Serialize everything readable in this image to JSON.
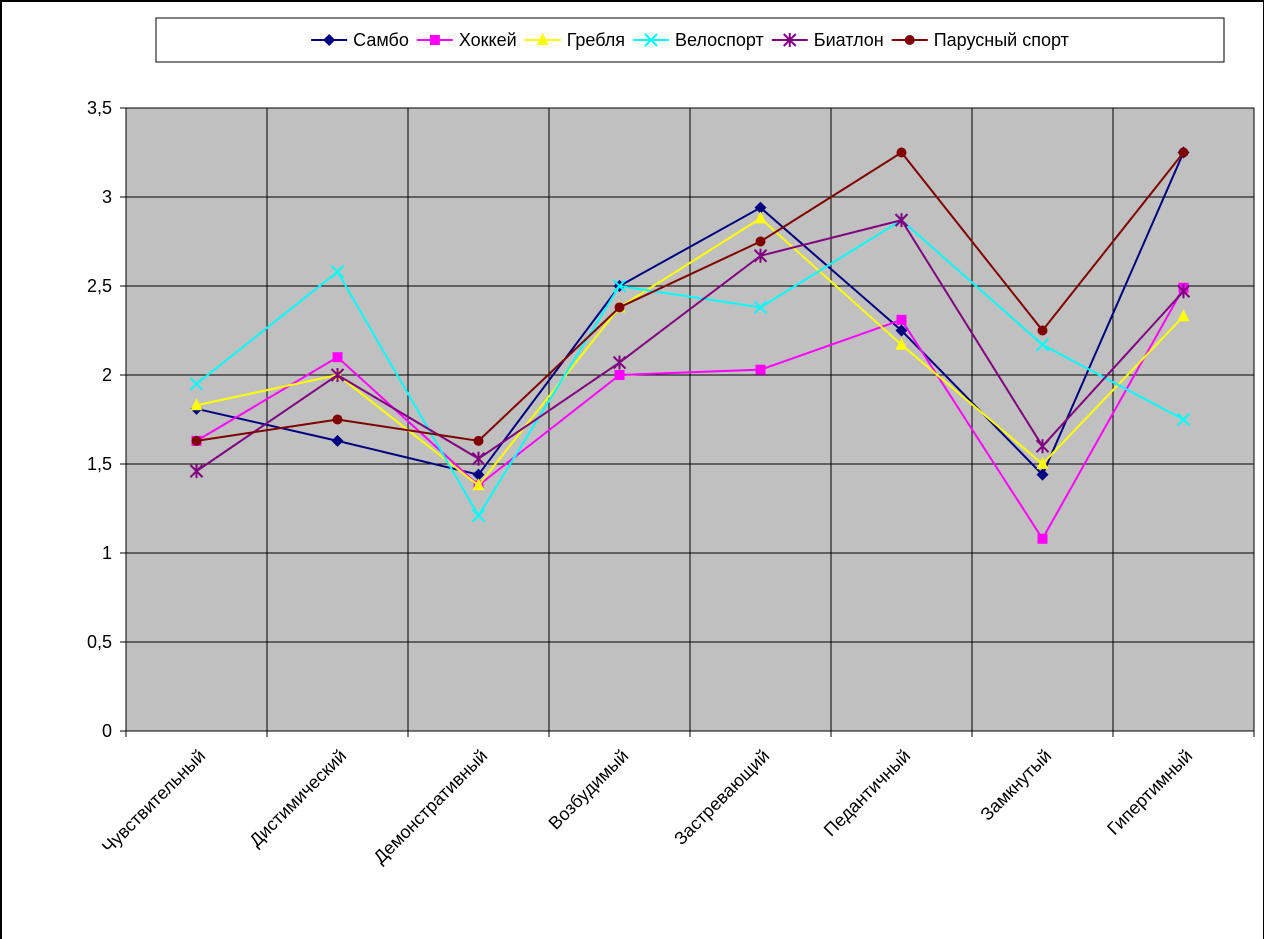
{
  "chart_data": {
    "type": "line",
    "title": "",
    "xlabel": "",
    "ylabel": "",
    "categories": [
      "Чувствительный",
      "Дистимический",
      "Демонстративный",
      "Возбудимый",
      "Застревающий",
      "Педантичный",
      "Замкнутый",
      "Гипертимный"
    ],
    "ylim": [
      0,
      3.5
    ],
    "yticks": [
      {
        "value": 0,
        "label": "0"
      },
      {
        "value": 0.5,
        "label": "0,5"
      },
      {
        "value": 1,
        "label": "1"
      },
      {
        "value": 1.5,
        "label": "1,5"
      },
      {
        "value": 2,
        "label": "2"
      },
      {
        "value": 2.5,
        "label": "2,5"
      },
      {
        "value": 3,
        "label": "3"
      },
      {
        "value": 3.5,
        "label": "3,5"
      }
    ],
    "grid": true,
    "plot_background": "#c0c0c0",
    "legend_position": "top",
    "series": [
      {
        "name": "Самбо",
        "color": "#000080",
        "marker": "diamond",
        "values": [
          1.81,
          1.63,
          1.44,
          2.5,
          2.94,
          2.25,
          1.44,
          3.25
        ]
      },
      {
        "name": "Хоккей",
        "color": "#ff00ff",
        "marker": "square",
        "values": [
          1.63,
          2.1,
          1.38,
          2.0,
          2.03,
          2.31,
          1.08,
          2.49
        ]
      },
      {
        "name": "Гребля",
        "color": "#ffff00",
        "marker": "triangle",
        "values": [
          1.83,
          2.0,
          1.38,
          2.38,
          2.88,
          2.17,
          1.5,
          2.33
        ]
      },
      {
        "name": "Велоспорт",
        "color": "#00ffff",
        "marker": "x",
        "values": [
          1.95,
          2.58,
          1.21,
          2.5,
          2.38,
          2.87,
          2.17,
          1.75
        ]
      },
      {
        "name": "Биатлон",
        "color": "#800080",
        "marker": "star",
        "values": [
          1.46,
          2.0,
          1.53,
          2.07,
          2.67,
          2.87,
          1.6,
          2.47
        ]
      },
      {
        "name": "Парусный спорт",
        "color": "#800000",
        "marker": "circle",
        "values": [
          1.63,
          1.75,
          1.63,
          2.38,
          2.75,
          3.25,
          2.25,
          3.25
        ]
      }
    ]
  }
}
